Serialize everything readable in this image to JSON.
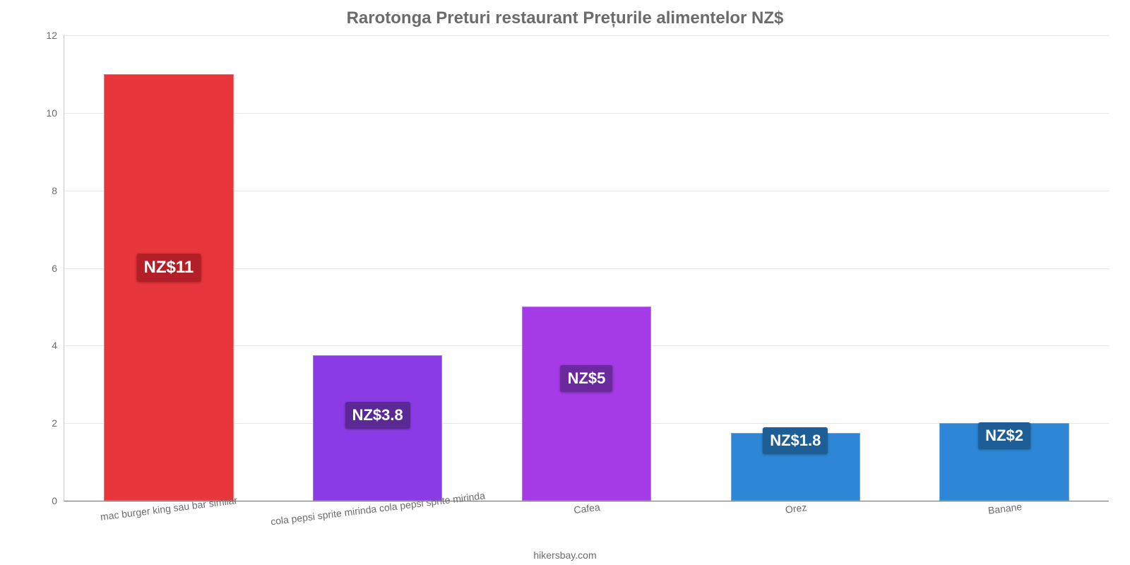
{
  "chart": {
    "type": "bar",
    "title": "Rarotonga Preturi restaurant Prețurile alimentelor NZ$",
    "title_fontsize": 24,
    "title_color": "#6b6b6b",
    "background_color": "#ffffff",
    "grid_color": "#e6e6e6",
    "axis_color": "#c8c8c8",
    "tick_label_color": "#6b6b6b",
    "tick_fontsize": 14,
    "y": {
      "min": 0,
      "max": 12,
      "ticks": [
        0,
        2,
        4,
        6,
        8,
        10,
        12
      ]
    },
    "bar_width_pct": 62,
    "bars": [
      {
        "category": "mac burger king sau bar similar",
        "value": 11,
        "display": "NZ$11",
        "color": "#e7363c",
        "label_bg": "#b31f27",
        "label_fontsize": 24,
        "label_top_pct": 42
      },
      {
        "category": "cola pepsi sprite mirinda cola pepsi sprite mirinda",
        "value": 3.75,
        "display": "NZ$3.8",
        "color": "#8a3be6",
        "label_bg": "#5b2994",
        "label_fontsize": 22,
        "label_top_pct": 32
      },
      {
        "category": "Cafea",
        "value": 5,
        "display": "NZ$5",
        "color": "#a43be6",
        "label_bg": "#6a2a9e",
        "label_fontsize": 22,
        "label_top_pct": 30
      },
      {
        "category": "Orez",
        "value": 1.75,
        "display": "NZ$1.8",
        "color": "#2d87d6",
        "label_bg": "#1e5e96",
        "label_fontsize": 22,
        "label_top_pct": -10
      },
      {
        "category": "Banane",
        "value": 2,
        "display": "NZ$2",
        "color": "#2d87d6",
        "label_bg": "#1e5e96",
        "label_fontsize": 22,
        "label_top_pct": -2
      }
    ],
    "footer": "hikersbay.com"
  }
}
